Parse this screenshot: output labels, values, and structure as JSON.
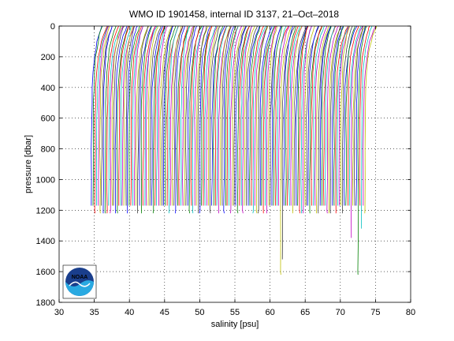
{
  "chart_data": {
    "type": "line",
    "title": "WMO ID 1901458, internal ID 3137, 21–Oct–2018",
    "xlabel": "salinity [psu]",
    "ylabel": "pressure [dbar]",
    "xlim": [
      30,
      80
    ],
    "ylim": [
      0,
      1800
    ],
    "y_reversed": true,
    "grid": true,
    "xticks": [
      "30",
      "35",
      "40",
      "45",
      "50",
      "55",
      "60",
      "65",
      "70",
      "75",
      "80"
    ],
    "yticks": [
      "0",
      "200",
      "400",
      "600",
      "800",
      "1000",
      "1200",
      "1400",
      "1600",
      "1800"
    ],
    "offset_profiles": {
      "count": 160,
      "first_deep_salinity": 34.6,
      "last_deep_salinity": 73.5,
      "surface_salinity_excess": 1.2,
      "typical_max_pressure": 1170,
      "deep_profiles": [
        {
          "deep_salinity": 61.4,
          "max_pressure": 1620
        },
        {
          "deep_salinity": 72.6,
          "max_pressure": 1620
        },
        {
          "deep_salinity": 71.6,
          "max_pressure": 1380
        },
        {
          "deep_salinity": 73.1,
          "max_pressure": 1320
        },
        {
          "deep_salinity": 61.7,
          "max_pressure": 1520
        }
      ]
    },
    "series_colors": [
      "#0000ff",
      "#008000",
      "#ff0000",
      "#00bfbf",
      "#bf00bf",
      "#bfbf00",
      "#404040"
    ]
  },
  "logo": {
    "name": "noaa-logo",
    "text": "NOAA"
  }
}
